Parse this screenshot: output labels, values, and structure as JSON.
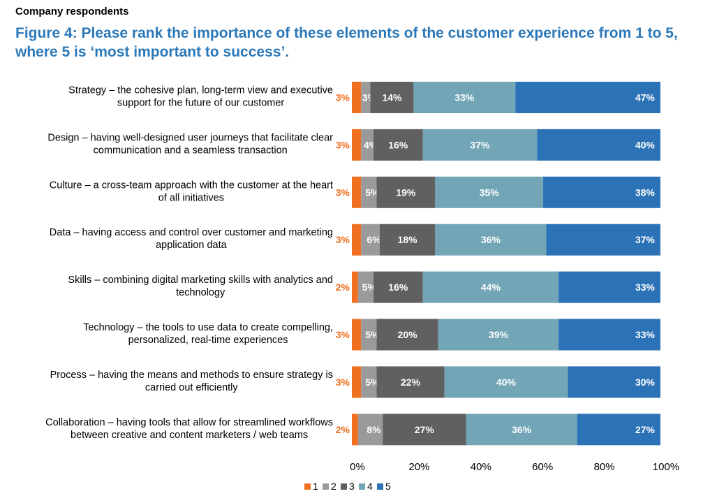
{
  "header": {
    "super_title": "Company respondents",
    "title": "Figure 4: Please rank the importance of these elements of the customer experience from 1 to 5, where 5 is ‘most important to success’."
  },
  "chart_data": {
    "type": "bar",
    "orientation": "horizontal",
    "stacked": true,
    "percent": true,
    "categories": [
      [
        "Strategy – the cohesive plan, long-term view and executive",
        "support for the future of our customer"
      ],
      [
        "Design – having well-designed user journeys that facilitate clear",
        "communication and a seamless transaction"
      ],
      [
        "Culture – a cross-team approach with the customer at the heart",
        "of all initiatives"
      ],
      [
        "Data – having access and control over customer and marketing",
        "application data"
      ],
      [
        "Skills – combining digital marketing skills with analytics and",
        "technology"
      ],
      [
        "Technology – the tools to use data to create compelling,",
        "personalized, real-time experiences"
      ],
      [
        "Process – having the means and methods to ensure strategy is",
        "carried out efficiently"
      ],
      [
        "Collaboration – having tools that allow for streamlined workflows",
        "between creative and content marketers / web teams"
      ]
    ],
    "series": [
      {
        "name": "1",
        "color": "#f07020",
        "values": [
          3,
          3,
          3,
          3,
          2,
          3,
          3,
          2
        ]
      },
      {
        "name": "2",
        "color": "#9a9a9a",
        "values": [
          3,
          4,
          5,
          6,
          5,
          5,
          5,
          8
        ]
      },
      {
        "name": "3",
        "color": "#606060",
        "values": [
          14,
          16,
          19,
          18,
          16,
          20,
          22,
          27
        ]
      },
      {
        "name": "4",
        "color": "#72a5b6",
        "values": [
          33,
          37,
          35,
          36,
          44,
          39,
          40,
          36
        ]
      },
      {
        "name": "5",
        "color": "#2c72b6",
        "values": [
          47,
          40,
          38,
          37,
          33,
          33,
          30,
          27
        ]
      }
    ],
    "data_labels": [
      [
        "3%",
        "3%",
        "14%",
        "33%",
        "47%"
      ],
      [
        "3%",
        "4%",
        "16%",
        "37%",
        "40%"
      ],
      [
        "3%",
        "5%",
        "19%",
        "35%",
        "38%"
      ],
      [
        "3%",
        "6%",
        "18%",
        "36%",
        "37%"
      ],
      [
        "2%",
        "5%",
        "16%",
        "44%",
        "33%"
      ],
      [
        "3%",
        "5%",
        "20%",
        "39%",
        "33%"
      ],
      [
        "3%",
        "5%",
        "22%",
        "40%",
        "30%"
      ],
      [
        "2%",
        "8%",
        "27%",
        "36%",
        "27%"
      ]
    ],
    "x_ticks": [
      "0%",
      "20%",
      "40%",
      "60%",
      "80%",
      "100%"
    ],
    "xlim": [
      0,
      100
    ],
    "grid": false,
    "legend": {
      "position": "bottom",
      "entries": [
        "1",
        "2",
        "3",
        "4",
        "5"
      ]
    }
  }
}
